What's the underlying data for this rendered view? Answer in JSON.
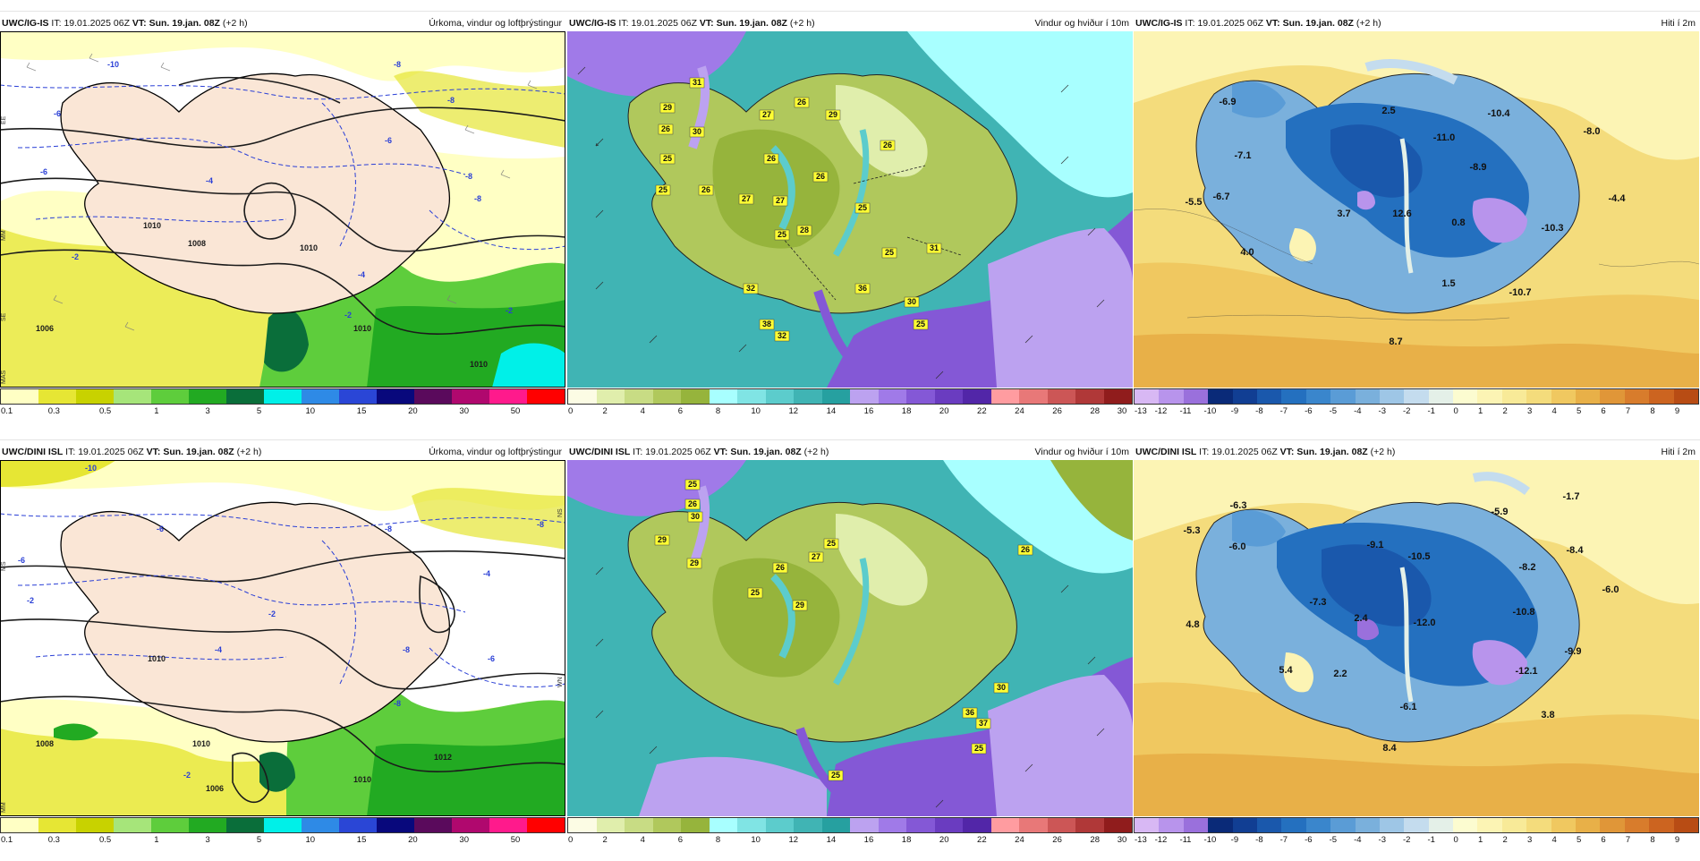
{
  "panels": [
    [
      {
        "model": "UWC/IG-IS",
        "it_label": "IT:",
        "it": "19.01.2025 06Z",
        "vt_label": "VT:",
        "vt": "Sun. 19.jan. 08Z",
        "lead": "(+2 h)",
        "title": "Úrkoma, vindur og loftþrýstingur"
      },
      {
        "model": "UWC/IG-IS",
        "it_label": "IT:",
        "it": "19.01.2025 06Z",
        "vt_label": "VT:",
        "vt": "Sun. 19.jan. 08Z",
        "lead": "(+2 h)",
        "title": "Vindur og hviður í 10m"
      },
      {
        "model": "UWC/IG-IS",
        "it_label": "IT:",
        "it": "19.01.2025 06Z",
        "vt_label": "VT:",
        "vt": "Sun. 19.jan. 08Z",
        "lead": "(+2 h)",
        "title": "Hiti í 2m"
      }
    ],
    [
      {
        "model": "UWC/DINI ISL",
        "it_label": "IT:",
        "it": "19.01.2025 06Z",
        "vt_label": "VT:",
        "vt": "Sun. 19.jan. 08Z",
        "lead": "(+2 h)",
        "title": "Úrkoma, vindur og loftþrýstingur"
      },
      {
        "model": "UWC/DINI ISL",
        "it_label": "IT:",
        "it": "19.01.2025 06Z",
        "vt_label": "VT:",
        "vt": "Sun. 19.jan. 08Z",
        "lead": "(+2 h)",
        "title": "Vindur og hviður í 10m"
      },
      {
        "model": "UWC/DINI ISL",
        "it_label": "IT:",
        "it": "19.01.2025 06Z",
        "vt_label": "VT:",
        "vt": "Sun. 19.jan. 08Z",
        "lead": "(+2 h)",
        "title": "Hiti í 2m"
      }
    ]
  ],
  "legends": {
    "precip": {
      "colors": [
        "#ffffc4",
        "#e6e634",
        "#c8d200",
        "#a6e57a",
        "#5ecd3c",
        "#22aa22",
        "#0a6e3a",
        "#00f0e8",
        "#2e8ae6",
        "#2a46d6",
        "#08087c",
        "#5a0a5c",
        "#b0086e",
        "#ff1a8c",
        "#ff0000"
      ],
      "ticks": [
        "0.1",
        "0.3",
        "0.5",
        "1",
        "3",
        "5",
        "10",
        "15",
        "20",
        "30",
        "50"
      ]
    },
    "wind": {
      "colors": [
        "#fcfce4",
        "#e0eeac",
        "#c8dc84",
        "#b0c85c",
        "#96b43c",
        "#a8ffff",
        "#80e4e4",
        "#5ccccc",
        "#40b4b4",
        "#26a0a0",
        "#bca2f0",
        "#a07ae8",
        "#8458d6",
        "#6a3cc0",
        "#5226a8",
        "#ff9ca0",
        "#e87878",
        "#cc5656",
        "#b03838",
        "#901c1c"
      ],
      "ticks": [
        "0",
        "2",
        "4",
        "6",
        "8",
        "10",
        "12",
        "14",
        "16",
        "18",
        "20",
        "22",
        "24",
        "26",
        "28",
        "30"
      ]
    },
    "temp": {
      "colors": [
        "#d8b8f4",
        "#b894ec",
        "#9a70dc",
        "#0a2a78",
        "#113e93",
        "#1a58ac",
        "#2470bf",
        "#3a86cc",
        "#5a9cd6",
        "#7ab0dc",
        "#9ec6e6",
        "#c4dcee",
        "#e4f0e8",
        "#fcfcd0",
        "#fcf4b4",
        "#f8ea98",
        "#f4dc7c",
        "#f0c860",
        "#e8b048",
        "#e09638",
        "#d87c2c",
        "#cc6420",
        "#b84c14"
      ],
      "ticks": [
        "-13",
        "-12",
        "-11",
        "-10",
        "-9",
        "-8",
        "-7",
        "-6",
        "-5",
        "-4",
        "-3",
        "-2",
        "-1",
        "0",
        "1",
        "2",
        "3",
        "4",
        "5",
        "6",
        "7",
        "8",
        "9"
      ]
    }
  },
  "map_labels": {
    "precip": [
      {
        "isobars": [
          "1010",
          "1008",
          "1006",
          "1010",
          "1010",
          "1010"
        ],
        "temps": [
          "-10",
          "-6",
          "-8",
          "-8",
          "-6",
          "-2",
          "-4",
          "-2",
          "-8",
          "-6",
          "-8",
          "-2",
          "-4"
        ],
        "axis": [
          "EE",
          "SE",
          "MM",
          "MAS"
        ]
      },
      {
        "isobars": [
          "1010",
          "1008",
          "1010",
          "1012",
          "1010",
          "1006"
        ],
        "temps": [
          "-10",
          "-8",
          "-6",
          "-8",
          "-6",
          "-2",
          "-4",
          "-4",
          "-2",
          "-8",
          "-6",
          "-8",
          "-2"
        ],
        "axis": [
          "MS",
          "MM",
          "NS",
          "WN"
        ]
      }
    ],
    "wind": [
      {
        "gusts": [
          "31",
          "29",
          "26",
          "30",
          "25",
          "25",
          "26",
          "27",
          "26",
          "29",
          "26",
          "26",
          "27",
          "27",
          "25",
          "28",
          "32",
          "38",
          "32",
          "36",
          "31",
          "25",
          "30",
          "25",
          "25",
          "26"
        ]
      },
      {
        "gusts": [
          "25",
          "26",
          "30",
          "29",
          "29",
          "25",
          "25",
          "27",
          "26",
          "29",
          "26",
          "30",
          "36",
          "37",
          "25",
          "25"
        ]
      }
    ],
    "temp": [
      {
        "values": [
          "-6.9",
          "2.5",
          "-10.4",
          "-8.0",
          "-11.0",
          "-7.1",
          "-8.9",
          "-6.7",
          "-5.5",
          "3.7",
          "12.6",
          "0.8",
          "-10.3",
          "-4.4",
          "4.0",
          "1.5",
          "-10.7",
          "8.7"
        ]
      },
      {
        "values": [
          "-6.3",
          "-1.7",
          "-5.3",
          "-5.9",
          "-6.0",
          "-9.1",
          "-10.5",
          "-8.4",
          "-8.2",
          "-7.3",
          "2.4",
          "-12.0",
          "-10.8",
          "-6.0",
          "4.8",
          "-9.9",
          "5.4",
          "2.2",
          "-12.1",
          "-6.1",
          "3.8",
          "8.4"
        ]
      }
    ]
  }
}
